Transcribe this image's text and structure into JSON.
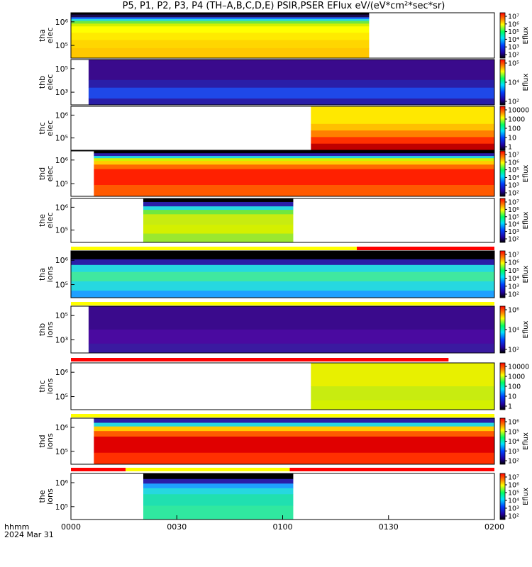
{
  "title": "P5, P1, P2, P3, P4 (TH–A,B,C,D,E) PSIR,PSER EFlux eV/(eV*cm²*sec*sr)",
  "time_axis": {
    "label_line1": "hhmm",
    "label_line2": "2024 Mar 31",
    "ticks": [
      "0000",
      "0030",
      "0100",
      "0130",
      "0200"
    ],
    "range_minutes": [
      0,
      120
    ]
  },
  "chart_data": {
    "type": "heatmap",
    "x_units": "minutes since 0000 UT, 2024 Mar 31",
    "y_units": "eV",
    "panels": [
      {
        "probe": "tha",
        "species": "elec",
        "ylabel": "tha\nelec",
        "yticks": [
          "10⁶",
          "10⁵"
        ],
        "data_start_min": 0,
        "data_end_min": 84.5,
        "colorbar": {
          "ticks": [
            "10⁷",
            "10⁶",
            "10⁵",
            "10⁴",
            "10³",
            "10²"
          ],
          "label": "Eflux"
        },
        "bands": [
          [
            "#000000",
            0.04
          ],
          [
            "#1a0a50",
            0.1
          ],
          [
            "#1f6fff",
            0.14
          ],
          [
            "#26d8e0",
            0.18
          ],
          [
            "#6fe840",
            0.24
          ],
          [
            "#d4f000",
            0.3
          ],
          [
            "#ffff00",
            0.44
          ],
          [
            "#ffea00",
            0.6
          ],
          [
            "#ffd600",
            0.78
          ],
          [
            "#ffc800",
            1.0
          ]
        ]
      },
      {
        "probe": "thb",
        "species": "elec",
        "ylabel": "thb\nelec",
        "yticks": [
          "10⁵",
          "10³"
        ],
        "data_start_min": 5,
        "data_end_min": 120,
        "colorbar": {
          "ticks": [
            "10⁵",
            "10⁴",
            "10²"
          ],
          "label": "Eflux"
        },
        "bands": [
          [
            "#3a0a8c",
            0.45
          ],
          [
            "#2a1ea8",
            0.62
          ],
          [
            "#1f48e8",
            0.86
          ],
          [
            "#2a1ea8",
            1.0
          ]
        ]
      },
      {
        "probe": "thc",
        "species": "elec",
        "ylabel": "thc\nelec",
        "yticks": [
          "10⁶",
          "10⁵"
        ],
        "data_start_min": 68,
        "data_end_min": 120,
        "colorbar": {
          "ticks": [
            "10000",
            "1000",
            "100",
            "10",
            "1"
          ],
          "label": ""
        },
        "bands": [
          [
            "#ffe800",
            0.4
          ],
          [
            "#ffc000",
            0.55
          ],
          [
            "#ff8000",
            0.7
          ],
          [
            "#ff3000",
            0.85
          ],
          [
            "#c00000",
            1.0
          ]
        ]
      },
      {
        "probe": "thd",
        "species": "elec",
        "ylabel": "thd\nelec",
        "yticks": [
          "10⁶",
          "10⁵"
        ],
        "data_start_min": 6.5,
        "data_end_min": 120,
        "colorbar": {
          "ticks": [
            "10⁷",
            "10⁶",
            "10⁵",
            "10⁴",
            "10³",
            "10²"
          ],
          "label": "Eflux"
        },
        "bands": [
          [
            "#000000",
            0.05
          ],
          [
            "#2a1ea8",
            0.11
          ],
          [
            "#26d8e0",
            0.16
          ],
          [
            "#d4f000",
            0.22
          ],
          [
            "#ffcc00",
            0.3
          ],
          [
            "#ff6a00",
            0.4
          ],
          [
            "#ff2000",
            0.75
          ],
          [
            "#ff5a00",
            1.0
          ]
        ]
      },
      {
        "probe": "the",
        "species": "elec",
        "ylabel": "the\nelec",
        "yticks": [
          "10⁶",
          "10⁵"
        ],
        "data_start_min": 20.5,
        "data_end_min": 63,
        "colorbar": {
          "ticks": [
            "10⁷",
            "10⁶",
            "10⁵",
            "10⁴",
            "10³",
            "10²"
          ],
          "label": "Eflux"
        },
        "bands": [
          [
            "#000000",
            0.08
          ],
          [
            "#2a1ea8",
            0.18
          ],
          [
            "#26d8e0",
            0.26
          ],
          [
            "#6fe840",
            0.36
          ],
          [
            "#c8ec10",
            0.6
          ],
          [
            "#d4f000",
            0.8
          ],
          [
            "#9ae830",
            1.0
          ]
        ]
      },
      {
        "probe": "tha",
        "species": "ions",
        "ylabel": "tha\nions",
        "yticks": [
          "10⁶",
          "10⁵"
        ],
        "data_start_min": 0,
        "data_end_min": 120,
        "colorbar": {
          "ticks": [
            "10⁷",
            "10⁶",
            "10⁵",
            "10⁴",
            "10³",
            "10²"
          ],
          "label": "Eflux"
        },
        "bands": [
          [
            "#000000",
            0.18
          ],
          [
            "#2a1ea8",
            0.3
          ],
          [
            "#26d8e0",
            0.45
          ],
          [
            "#40e8a0",
            0.65
          ],
          [
            "#26d8e0",
            0.85
          ],
          [
            "#1fa0ff",
            1.0
          ]
        ]
      },
      {
        "probe": "thb",
        "species": "ions",
        "ylabel": "thb\nions",
        "yticks": [
          "10⁵",
          "10³"
        ],
        "data_start_min": 5,
        "data_end_min": 120,
        "colorbar": {
          "ticks": [
            "10⁶",
            "10⁴",
            "10²"
          ],
          "label": "Eflux"
        },
        "bands": [
          [
            "#3a0a8c",
            0.5
          ],
          [
            "#4a0aa0",
            0.8
          ],
          [
            "#3a1aa0",
            1.0
          ]
        ]
      },
      {
        "probe": "thc",
        "species": "ions",
        "ylabel": "thc\nions",
        "yticks": [
          "10⁶",
          "10⁵"
        ],
        "data_start_min": 68,
        "data_end_min": 120,
        "colorbar": {
          "ticks": [
            "10000",
            "1000",
            "100",
            "10",
            "1"
          ],
          "label": ""
        },
        "bands": [
          [
            "#e8f000",
            0.5
          ],
          [
            "#c8ec10",
            0.8
          ],
          [
            "#d4f000",
            1.0
          ]
        ]
      },
      {
        "probe": "thd",
        "species": "ions",
        "ylabel": "thd\nions",
        "yticks": [
          "10⁶",
          "10⁵"
        ],
        "data_start_min": 6.5,
        "data_end_min": 120,
        "colorbar": {
          "ticks": [
            "10⁶",
            "10⁵",
            "10⁴",
            "10³",
            "10²"
          ],
          "label": "Eflux"
        },
        "bands": [
          [
            "#2a1ea8",
            0.1
          ],
          [
            "#26d8e0",
            0.18
          ],
          [
            "#ffcc00",
            0.28
          ],
          [
            "#ff5a00",
            0.4
          ],
          [
            "#e00000",
            0.75
          ],
          [
            "#ff3000",
            1.0
          ]
        ]
      },
      {
        "probe": "the",
        "species": "ions",
        "ylabel": "the\nions",
        "yticks": [
          "10⁶",
          "10⁵"
        ],
        "data_start_min": 20.5,
        "data_end_min": 63,
        "colorbar": {
          "ticks": [
            "10⁷",
            "10⁶",
            "10⁵",
            "10⁴",
            "10³",
            "10²"
          ],
          "label": "Eflux"
        },
        "bands": [
          [
            "#000000",
            0.12
          ],
          [
            "#2a1ea8",
            0.22
          ],
          [
            "#1fa0ff",
            0.32
          ],
          [
            "#26d8e0",
            0.45
          ],
          [
            "#20e0b0",
            0.7
          ],
          [
            "#30e8a0",
            1.0
          ]
        ]
      }
    ],
    "mode_bars": [
      {
        "after_panel": 4,
        "segments": [
          [
            0,
            81,
            "#ffff00"
          ],
          [
            81,
            120,
            "#ff0000"
          ]
        ]
      },
      {
        "after_panel": 5,
        "segments": [
          [
            0,
            120,
            "#ffff00"
          ]
        ]
      },
      {
        "after_panel": 6,
        "segments": [
          [
            0,
            107,
            "#ff0000"
          ]
        ]
      },
      {
        "after_panel": 7,
        "segments": [
          [
            0,
            120,
            "#ffff00"
          ]
        ]
      },
      {
        "after_panel": 8,
        "segments": [
          [
            0,
            15.5,
            "#ff0000"
          ],
          [
            15.5,
            62,
            "#ffff00"
          ],
          [
            62,
            120,
            "#ff0000"
          ]
        ]
      }
    ]
  }
}
